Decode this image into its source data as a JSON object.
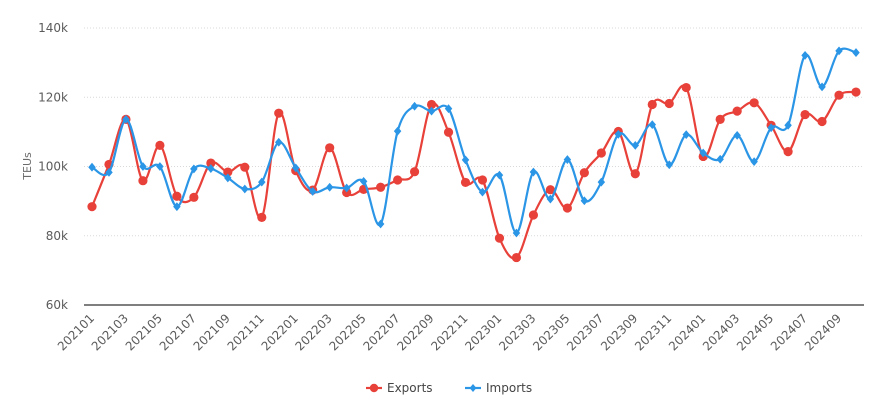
{
  "chart_data": {
    "type": "line",
    "title": "",
    "xlabel": "",
    "ylabel": "TEUs",
    "ylim": [
      60000,
      140000
    ],
    "yticks": [
      60000,
      80000,
      100000,
      120000,
      140000
    ],
    "ytick_labels": [
      "60k",
      "80k",
      "100k",
      "120k",
      "140k"
    ],
    "grid": true,
    "legend_position": "bottom-center",
    "x": [
      "202101",
      "202102",
      "202103",
      "202104",
      "202105",
      "202106",
      "202107",
      "202108",
      "202109",
      "202110",
      "202111",
      "202112",
      "202201",
      "202202",
      "202203",
      "202204",
      "202205",
      "202206",
      "202207",
      "202208",
      "202209",
      "202210",
      "202211",
      "202212",
      "202301",
      "202302",
      "202303",
      "202304",
      "202305",
      "202306",
      "202307",
      "202308",
      "202309",
      "202310",
      "202311",
      "202312",
      "202401",
      "202402",
      "202403",
      "202404",
      "202405",
      "202406",
      "202407",
      "202408",
      "202409",
      "202410"
    ],
    "xtick_labels": [
      "202101",
      "202103",
      "202105",
      "202107",
      "202109",
      "202111",
      "202201",
      "202203",
      "202205",
      "202207",
      "202209",
      "202211",
      "202301",
      "202303",
      "202305",
      "202307",
      "202309",
      "202311",
      "202401",
      "202403",
      "202405",
      "202407",
      "202409"
    ],
    "series": [
      {
        "name": "Exports",
        "color": "#E8413A",
        "marker": "circle",
        "values": [
          88400,
          100600,
          113600,
          95900,
          106100,
          91400,
          91100,
          101000,
          98400,
          99800,
          85300,
          115400,
          98800,
          93200,
          105400,
          92500,
          93400,
          94000,
          96100,
          98500,
          117900,
          109900,
          95400,
          96100,
          79300,
          73700,
          86000,
          93300,
          88000,
          98200,
          103900,
          110100,
          97900,
          117900,
          118200,
          122800,
          102900,
          113600,
          116000,
          118400,
          111900,
          104300,
          115000,
          113000,
          120600,
          121500
        ]
      },
      {
        "name": "Imports",
        "color": "#2B95E6",
        "marker": "diamond",
        "values": [
          99800,
          98300,
          113600,
          100000,
          100000,
          88400,
          99300,
          99400,
          96700,
          93500,
          95500,
          107000,
          99600,
          92800,
          94000,
          93800,
          95700,
          83400,
          110200,
          117400,
          116000,
          116700,
          101900,
          92600,
          97500,
          80800,
          98400,
          90600,
          102000,
          90100,
          95500,
          109300,
          106100,
          112100,
          100500,
          109200,
          103900,
          102100,
          109000,
          101400,
          111200,
          111900,
          132100,
          123000,
          133400,
          132900
        ]
      }
    ]
  }
}
